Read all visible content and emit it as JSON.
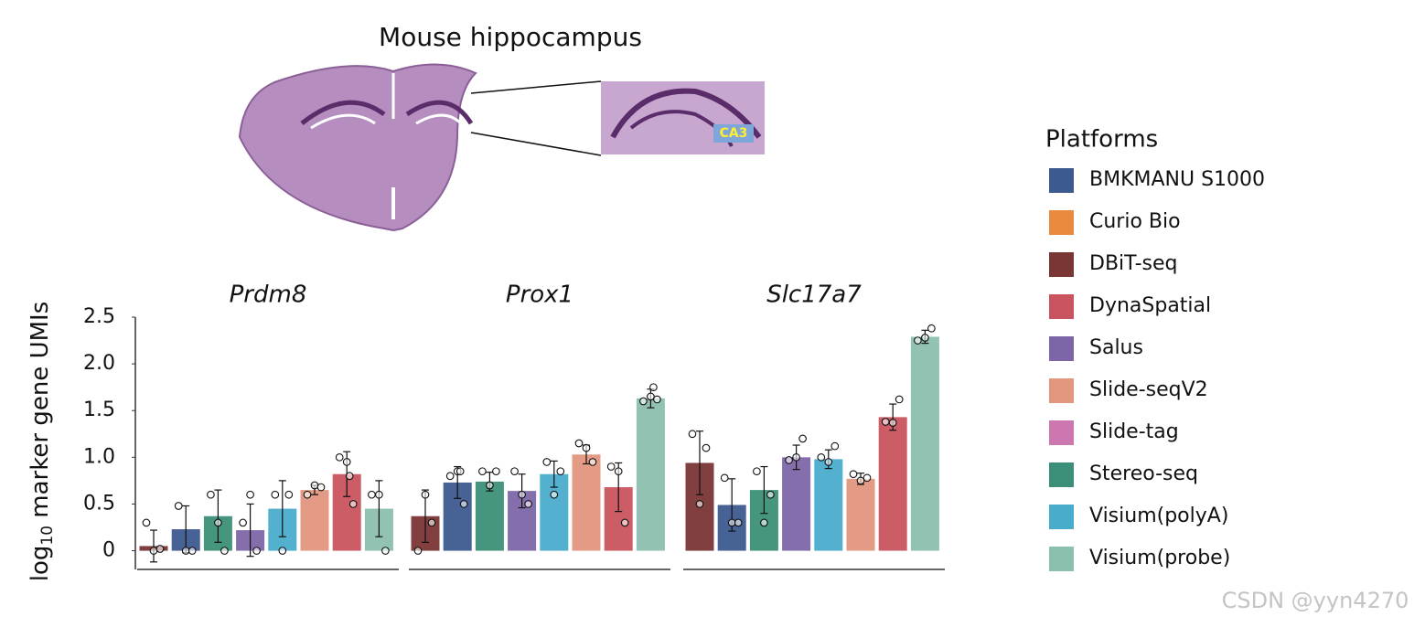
{
  "header": {
    "title": "Mouse hippocampus",
    "inset_label": "CA3"
  },
  "watermark": "CSDN @yyn4270",
  "chart_data": {
    "type": "bar",
    "ylabel": {
      "base": "log",
      "sub": "10",
      "rest": " marker gene UMIs"
    },
    "ylim": [
      -0.2,
      2.5
    ],
    "yticks": [
      0,
      0.5,
      {
        "value": 1,
        "label": "1.0"
      },
      1.5,
      {
        "value": 2,
        "label": "2.0"
      },
      2.5
    ],
    "panels": [
      {
        "title": "Prdm8",
        "bars": [
          {
            "color": "#7a3535",
            "value": 0.05,
            "error": 0.17,
            "points": [
              0.3,
              0,
              0.02
            ]
          },
          {
            "color": "#3d5a8f",
            "value": 0.23,
            "error": 0.25,
            "points": [
              0.48,
              0,
              0
            ]
          },
          {
            "color": "#3b8f78",
            "value": 0.37,
            "error": 0.28,
            "points": [
              0.6,
              0.3,
              0
            ]
          },
          {
            "color": "#7d66a8",
            "value": 0.22,
            "error": 0.28,
            "points": [
              0.3,
              0.6,
              0
            ]
          },
          {
            "color": "#4aaccb",
            "value": 0.45,
            "error": 0.3,
            "points": [
              0.6,
              0,
              0.6
            ]
          },
          {
            "color": "#e3967e",
            "value": 0.65,
            "error": 0.05,
            "points": [
              0.6,
              0.7,
              0.68
            ]
          },
          {
            "color": "#c9545f",
            "value": 0.82,
            "error": 0.24,
            "points": [
              1.0,
              0.95,
              0.5,
              0.8
            ]
          },
          {
            "color": "#8bbfae",
            "value": 0.45,
            "error": 0.3,
            "points": [
              0.6,
              0.6,
              0
            ]
          }
        ]
      },
      {
        "title": "Prox1",
        "bars": [
          {
            "color": "#7a3535",
            "value": 0.37,
            "error": 0.28,
            "points": [
              0,
              0.6,
              0.3
            ]
          },
          {
            "color": "#3d5a8f",
            "value": 0.73,
            "error": 0.17,
            "points": [
              0.8,
              0.85,
              0.5,
              0.85
            ]
          },
          {
            "color": "#3b8f78",
            "value": 0.74,
            "error": 0.1,
            "points": [
              0.85,
              0.7,
              0.85
            ]
          },
          {
            "color": "#7d66a8",
            "value": 0.64,
            "error": 0.18,
            "points": [
              0.85,
              0.6,
              0.5
            ]
          },
          {
            "color": "#4aaccb",
            "value": 0.82,
            "error": 0.14,
            "points": [
              0.95,
              0.6,
              0.85
            ]
          },
          {
            "color": "#e3967e",
            "value": 1.03,
            "error": 0.1,
            "points": [
              1.15,
              1.1,
              0.95
            ]
          },
          {
            "color": "#c9545f",
            "value": 0.68,
            "error": 0.26,
            "points": [
              0.9,
              0.85,
              0.3
            ]
          },
          {
            "color": "#8bbfae",
            "value": 1.63,
            "error": 0.1,
            "points": [
              1.6,
              1.65,
              1.62,
              1.75
            ]
          }
        ]
      },
      {
        "title": "Slc17a7",
        "bars": [
          {
            "color": "#7a3535",
            "value": 0.94,
            "error": 0.34,
            "points": [
              1.25,
              0.5,
              1.1
            ]
          },
          {
            "color": "#3d5a8f",
            "value": 0.49,
            "error": 0.28,
            "points": [
              0.78,
              0.3,
              0.3
            ]
          },
          {
            "color": "#3b8f78",
            "value": 0.65,
            "error": 0.25,
            "points": [
              0.85,
              0.3,
              0.6
            ]
          },
          {
            "color": "#7d66a8",
            "value": 1.0,
            "error": 0.13,
            "points": [
              0.97,
              1.0,
              1.2
            ]
          },
          {
            "color": "#4aaccb",
            "value": 0.98,
            "error": 0.1,
            "points": [
              1.0,
              0.95,
              1.12
            ]
          },
          {
            "color": "#e3967e",
            "value": 0.77,
            "error": 0.06,
            "points": [
              0.82,
              0.75,
              0.78
            ]
          },
          {
            "color": "#c9545f",
            "value": 1.43,
            "error": 0.14,
            "points": [
              1.38,
              1.37,
              1.62
            ]
          },
          {
            "color": "#8bbfae",
            "value": 2.29,
            "error": 0.07,
            "points": [
              2.25,
              2.28,
              2.38
            ]
          }
        ]
      }
    ],
    "legend": {
      "title": "Platforms",
      "items": [
        {
          "name": "BMKMANU S1000",
          "color": "#3d5a8f"
        },
        {
          "name": "Curio Bio",
          "color": "#e88a40"
        },
        {
          "name": "DBiT-seq",
          "color": "#7a3535"
        },
        {
          "name": "DynaSpatial",
          "color": "#c9545f"
        },
        {
          "name": "Salus",
          "color": "#7d66a8"
        },
        {
          "name": "Slide-seqV2",
          "color": "#e3967e"
        },
        {
          "name": "Slide-tag",
          "color": "#cc77b0"
        },
        {
          "name": "Stereo-seq",
          "color": "#3b8f78"
        },
        {
          "name": "Visium(polyA)",
          "color": "#4aaccb"
        },
        {
          "name": "Visium(probe)",
          "color": "#8bbfae"
        }
      ]
    }
  }
}
